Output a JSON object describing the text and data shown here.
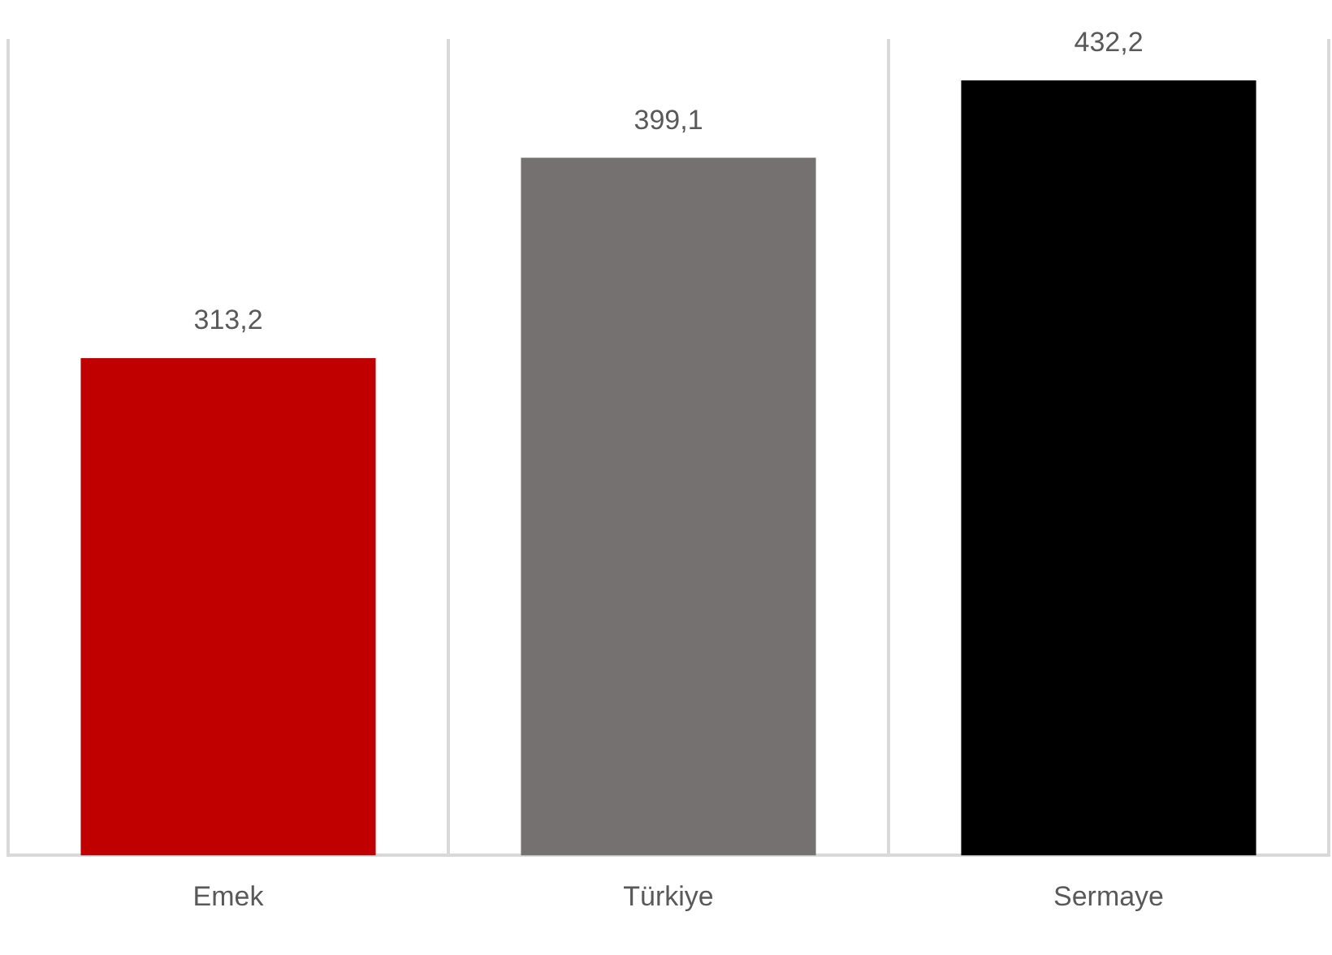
{
  "chart_data": {
    "type": "bar",
    "categories": [
      "Emek",
      "Türkiye",
      "Sermaye"
    ],
    "values": [
      313.2,
      399.1,
      432.2
    ],
    "colors": [
      "#c00000",
      "#767171",
      "#000000"
    ],
    "ylim": [
      100,
      450
    ],
    "value_labels": [
      "313,2",
      "399,1",
      "432,2"
    ],
    "grid": "x",
    "tick_labels": "x"
  }
}
